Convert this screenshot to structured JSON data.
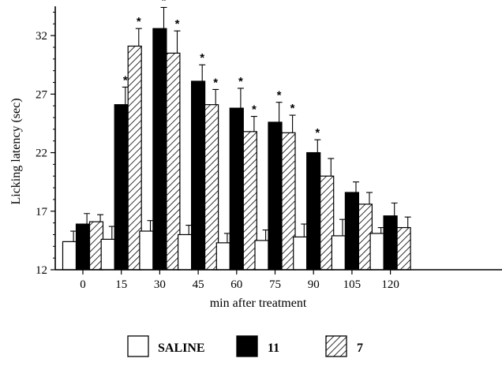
{
  "chart_data": {
    "type": "bar",
    "xlabel": "min after treatment",
    "ylabel": "Licking latency (sec)",
    "ylim": [
      12,
      34.5
    ],
    "yticks": [
      12,
      17,
      22,
      27,
      32
    ],
    "categories": [
      "0",
      "15",
      "30",
      "45",
      "60",
      "75",
      "90",
      "105",
      "120"
    ],
    "series": [
      {
        "name": "SALINE",
        "fill": "white",
        "values": [
          14.4,
          14.6,
          15.3,
          15.0,
          14.3,
          14.5,
          14.8,
          14.9,
          15.1
        ],
        "errors": [
          0.9,
          1.1,
          0.9,
          0.8,
          0.8,
          0.9,
          1.1,
          1.4,
          0.5
        ],
        "significant": [
          false,
          false,
          false,
          false,
          false,
          false,
          false,
          false,
          false
        ]
      },
      {
        "name": "11",
        "fill": "black",
        "values": [
          15.9,
          26.1,
          32.6,
          28.1,
          25.8,
          24.6,
          22.0,
          18.6,
          16.6
        ],
        "errors": [
          0.9,
          1.5,
          1.8,
          1.4,
          1.7,
          1.7,
          1.1,
          0.9,
          1.1
        ],
        "significant": [
          false,
          true,
          true,
          true,
          true,
          true,
          true,
          false,
          false
        ]
      },
      {
        "name": "7",
        "fill": "hatched",
        "values": [
          16.1,
          31.1,
          30.5,
          26.1,
          23.8,
          23.7,
          20.0,
          17.6,
          15.6
        ],
        "errors": [
          0.6,
          1.5,
          1.9,
          1.3,
          1.3,
          1.5,
          1.5,
          1.0,
          0.9
        ],
        "significant": [
          false,
          true,
          true,
          true,
          true,
          true,
          false,
          false,
          false
        ]
      }
    ],
    "significance_marker": "*",
    "legend_position": "bottom",
    "grid": false
  }
}
